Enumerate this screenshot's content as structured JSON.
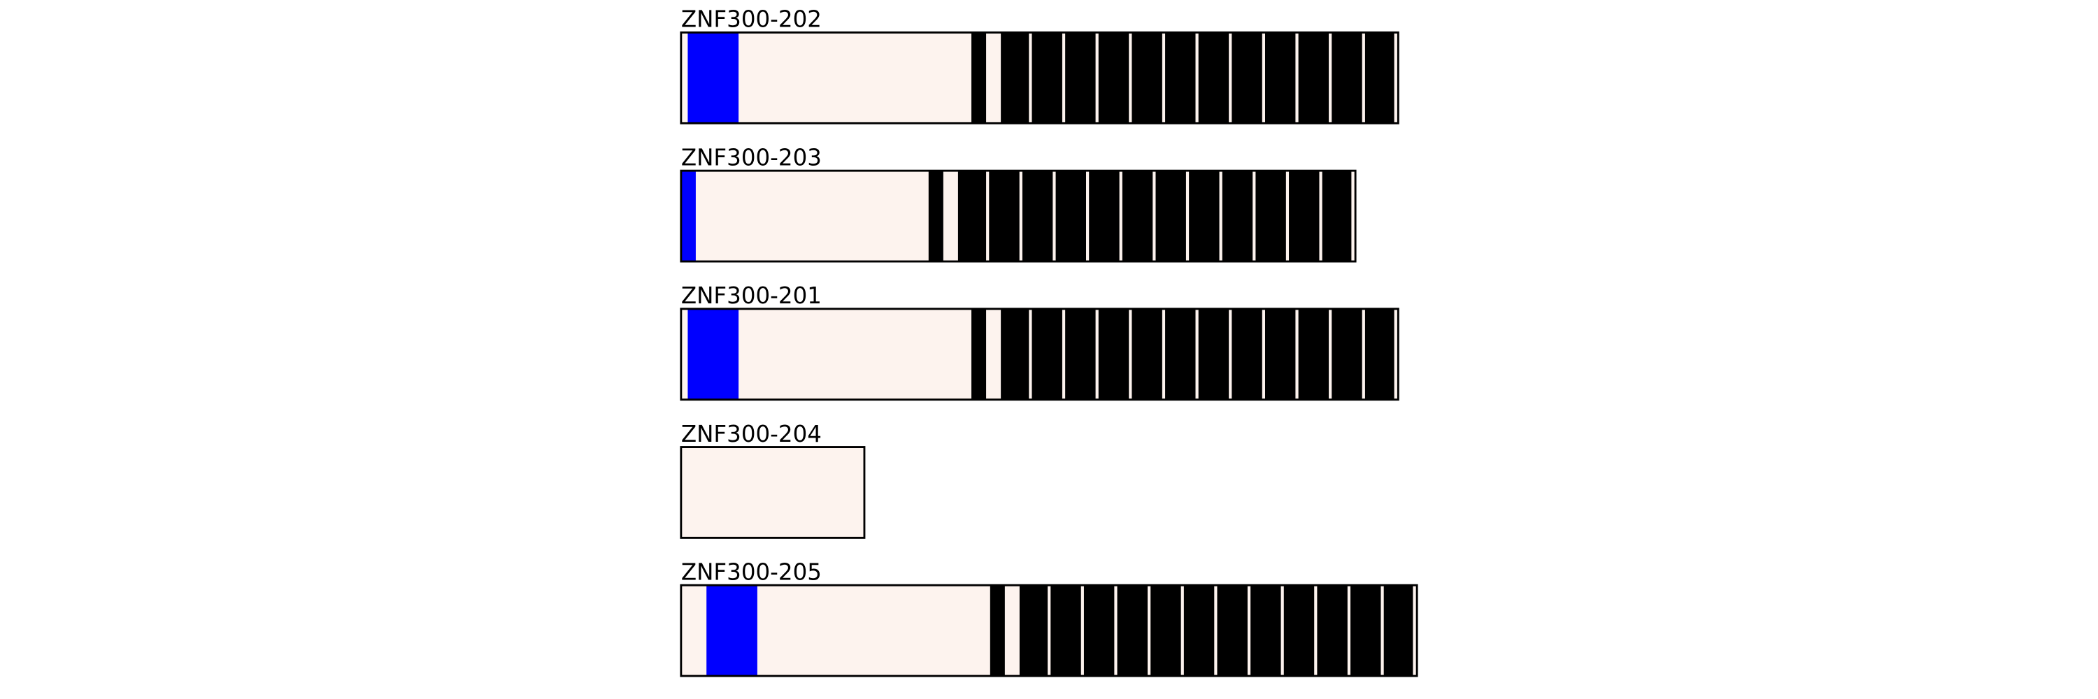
{
  "tracks": [
    "ZNF300-202",
    "ZNF300-203",
    "ZNF300-201",
    "ZNF300-204",
    "ZNF300-205"
  ]
}
